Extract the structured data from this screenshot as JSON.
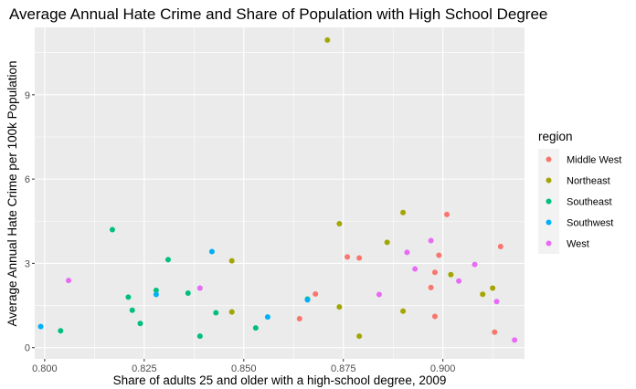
{
  "chart_data": {
    "type": "scatter",
    "title": "Average Annual Hate Crime and Share of Population with High School Degree",
    "xlabel": "Share of adults 25 and older with a high-school degree, 2009",
    "ylabel": "Average Annual Hate Crime per 100k Population",
    "xlim": [
      0.7975,
      0.9205
    ],
    "ylim": [
      -0.4,
      11.4
    ],
    "x_ticks": [
      {
        "value": 0.8,
        "label": "0.800"
      },
      {
        "value": 0.825,
        "label": "0.825"
      },
      {
        "value": 0.85,
        "label": "0.850"
      },
      {
        "value": 0.875,
        "label": "0.875"
      },
      {
        "value": 0.9,
        "label": "0.900"
      }
    ],
    "y_ticks": [
      {
        "value": 0,
        "label": "0"
      },
      {
        "value": 3,
        "label": "3"
      },
      {
        "value": 6,
        "label": "6"
      },
      {
        "value": 9,
        "label": "9"
      }
    ],
    "grid": true,
    "background": "#ebebeb",
    "legend": {
      "title": "region",
      "position": "right"
    },
    "series": [
      {
        "name": "Middle West",
        "color": "#f8766d",
        "points": [
          {
            "x": 0.864,
            "y": 1.03
          },
          {
            "x": 0.868,
            "y": 1.91
          },
          {
            "x": 0.876,
            "y": 3.23
          },
          {
            "x": 0.879,
            "y": 3.19
          },
          {
            "x": 0.897,
            "y": 2.14
          },
          {
            "x": 0.898,
            "y": 2.68
          },
          {
            "x": 0.898,
            "y": 1.11
          },
          {
            "x": 0.899,
            "y": 3.29
          },
          {
            "x": 0.901,
            "y": 4.74
          },
          {
            "x": 0.913,
            "y": 0.55
          },
          {
            "x": 0.9145,
            "y": 3.6
          }
        ]
      },
      {
        "name": "Northeast",
        "color": "#a3a500",
        "points": [
          {
            "x": 0.847,
            "y": 3.09
          },
          {
            "x": 0.847,
            "y": 1.27
          },
          {
            "x": 0.871,
            "y": 10.95
          },
          {
            "x": 0.874,
            "y": 4.41
          },
          {
            "x": 0.874,
            "y": 1.45
          },
          {
            "x": 0.879,
            "y": 0.41
          },
          {
            "x": 0.886,
            "y": 3.75
          },
          {
            "x": 0.89,
            "y": 4.81
          },
          {
            "x": 0.89,
            "y": 1.3
          },
          {
            "x": 0.902,
            "y": 2.6
          },
          {
            "x": 0.91,
            "y": 1.9
          },
          {
            "x": 0.9125,
            "y": 2.12
          }
        ]
      },
      {
        "name": "Southeast",
        "color": "#00bf7d",
        "points": [
          {
            "x": 0.804,
            "y": 0.6
          },
          {
            "x": 0.817,
            "y": 4.2
          },
          {
            "x": 0.821,
            "y": 1.8
          },
          {
            "x": 0.822,
            "y": 1.33
          },
          {
            "x": 0.824,
            "y": 0.86
          },
          {
            "x": 0.828,
            "y": 2.04
          },
          {
            "x": 0.831,
            "y": 3.13
          },
          {
            "x": 0.836,
            "y": 1.94
          },
          {
            "x": 0.839,
            "y": 0.41
          },
          {
            "x": 0.843,
            "y": 1.24
          },
          {
            "x": 0.853,
            "y": 0.7
          },
          {
            "x": 0.866,
            "y": 1.73
          }
        ]
      },
      {
        "name": "Southwest",
        "color": "#00b0f6",
        "points": [
          {
            "x": 0.799,
            "y": 0.75
          },
          {
            "x": 0.828,
            "y": 1.89
          },
          {
            "x": 0.842,
            "y": 3.42
          },
          {
            "x": 0.856,
            "y": 1.09
          },
          {
            "x": 0.866,
            "y": 1.7
          }
        ]
      },
      {
        "name": "West",
        "color": "#e76bf3",
        "points": [
          {
            "x": 0.806,
            "y": 2.39
          },
          {
            "x": 0.839,
            "y": 2.12
          },
          {
            "x": 0.884,
            "y": 1.89
          },
          {
            "x": 0.891,
            "y": 3.39
          },
          {
            "x": 0.893,
            "y": 2.8
          },
          {
            "x": 0.897,
            "y": 3.81
          },
          {
            "x": 0.904,
            "y": 2.37
          },
          {
            "x": 0.908,
            "y": 2.96
          },
          {
            "x": 0.9135,
            "y": 1.64
          },
          {
            "x": 0.918,
            "y": 0.27
          }
        ]
      }
    ]
  }
}
